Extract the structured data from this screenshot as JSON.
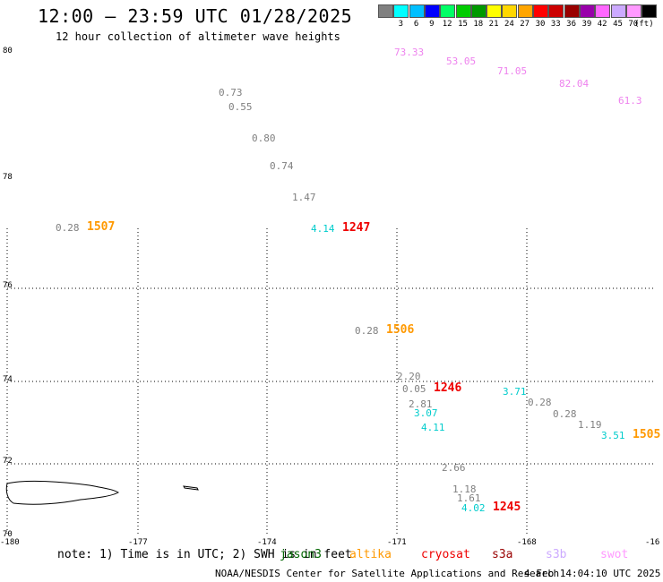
{
  "header": {
    "title": "12:00 – 23:59 UTC 01/28/2025",
    "subtitle": "12 hour collection of altimeter wave heights"
  },
  "legend": {
    "unit": "(ft)",
    "entries": [
      {
        "color": "#808080",
        "label": ""
      },
      {
        "color": "#00ffff",
        "label": "3"
      },
      {
        "color": "#00bfff",
        "label": "6"
      },
      {
        "color": "#0000ff",
        "label": "9"
      },
      {
        "color": "#00ff66",
        "label": "12"
      },
      {
        "color": "#00cc00",
        "label": "15"
      },
      {
        "color": "#009900",
        "label": "18"
      },
      {
        "color": "#ffff00",
        "label": "21"
      },
      {
        "color": "#ffd700",
        "label": "24"
      },
      {
        "color": "#ffa500",
        "label": "27"
      },
      {
        "color": "#ff0000",
        "label": "30"
      },
      {
        "color": "#cc0000",
        "label": "33"
      },
      {
        "color": "#990000",
        "label": "36"
      },
      {
        "color": "#9900aa",
        "label": "39"
      },
      {
        "color": "#ff66ff",
        "label": "42"
      },
      {
        "color": "#ccaaff",
        "label": "45"
      },
      {
        "color": "#ff99ff",
        "label": "70"
      },
      {
        "color": "#000000",
        "label": ""
      }
    ]
  },
  "axes": {
    "lat_labels": [
      "80",
      "78",
      "76",
      "74",
      "72",
      "70"
    ],
    "lon_labels": [
      "-180",
      "-177",
      "-174",
      "-171",
      "-168",
      "-16"
    ]
  },
  "wave_heights": [
    {
      "text": "73.33",
      "color": "#ee82ee"
    },
    {
      "text": "53.05",
      "color": "#ee82ee"
    },
    {
      "text": "71.05",
      "color": "#ee82ee"
    },
    {
      "text": "82.04",
      "color": "#ee82ee"
    },
    {
      "text": "61.3",
      "color": "#ee82ee"
    },
    {
      "text": "0.73",
      "color": "#808080"
    },
    {
      "text": "0.55",
      "color": "#808080"
    },
    {
      "text": "0.80",
      "color": "#808080"
    },
    {
      "text": "0.74",
      "color": "#808080"
    },
    {
      "text": "1.47",
      "color": "#808080"
    },
    {
      "text": "0.28",
      "color": "#808080"
    },
    {
      "text": "4.14",
      "color": "#00cccc"
    },
    {
      "text": "0.28",
      "color": "#808080"
    },
    {
      "text": "2.20",
      "color": "#808080"
    },
    {
      "text": "0.05",
      "color": "#808080"
    },
    {
      "text": "2.81",
      "color": "#808080"
    },
    {
      "text": "3.07",
      "color": "#00cccc"
    },
    {
      "text": "4.11",
      "color": "#00cccc"
    },
    {
      "text": "3.71",
      "color": "#00cccc"
    },
    {
      "text": "0.28",
      "color": "#808080"
    },
    {
      "text": "0.28",
      "color": "#808080"
    },
    {
      "text": "1.19",
      "color": "#808080"
    },
    {
      "text": "3.51",
      "color": "#00cccc"
    },
    {
      "text": "2.66",
      "color": "#808080"
    },
    {
      "text": "1.18",
      "color": "#808080"
    },
    {
      "text": "1.61",
      "color": "#808080"
    },
    {
      "text": "4.02",
      "color": "#00cccc"
    }
  ],
  "pass_times": [
    {
      "text": "1507",
      "color": "#ff9900"
    },
    {
      "text": "1247",
      "color": "#ee0000"
    },
    {
      "text": "1506",
      "color": "#ff9900"
    },
    {
      "text": "1246",
      "color": "#ee0000"
    },
    {
      "text": "1505",
      "color": "#ff9900"
    },
    {
      "text": "1245",
      "color": "#ee0000"
    }
  ],
  "footer": {
    "note": "note: 1) Time is in UTC; 2) SWH is in feet",
    "satellites": [
      {
        "name": "jason3",
        "color": "#006600"
      },
      {
        "name": "altika",
        "color": "#ff9900"
      },
      {
        "name": "cryosat",
        "color": "#ee0000"
      },
      {
        "name": "s3a",
        "color": "#990000"
      },
      {
        "name": "s3b",
        "color": "#ccaaff"
      },
      {
        "name": "swot",
        "color": "#ff99ff"
      }
    ],
    "credit": "NOAA/NESDIS Center for Satellite Applications and Research",
    "timestamp": "4 Feb 14:04:10 UTC 2025"
  }
}
